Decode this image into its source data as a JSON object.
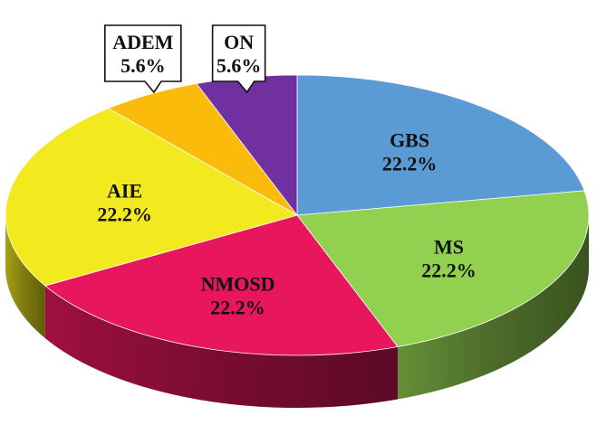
{
  "chart_data": {
    "type": "pie",
    "style": "3d-exploded-pie",
    "slices": [
      {
        "label": "GBS",
        "value": 22.2,
        "display": "22.2%",
        "color": "#5b9bd5",
        "label_style": "inside"
      },
      {
        "label": "MS",
        "value": 22.2,
        "display": "22.2%",
        "color": "#92d050",
        "label_style": "inside"
      },
      {
        "label": "NMOSD",
        "value": 22.2,
        "display": "22.2%",
        "color": "#e8175d",
        "label_style": "inside"
      },
      {
        "label": "AIE",
        "value": 22.2,
        "display": "22.2%",
        "color": "#f2ea1f",
        "label_style": "inside"
      },
      {
        "label": "ADEM",
        "value": 5.6,
        "display": "5.6%",
        "color": "#fbbb0a",
        "label_style": "callout"
      },
      {
        "label": "ON",
        "value": 5.6,
        "display": "5.6%",
        "color": "#7030a0",
        "label_style": "callout"
      }
    ],
    "start": "12 o'clock",
    "direction": "clockwise",
    "legend": "none"
  }
}
